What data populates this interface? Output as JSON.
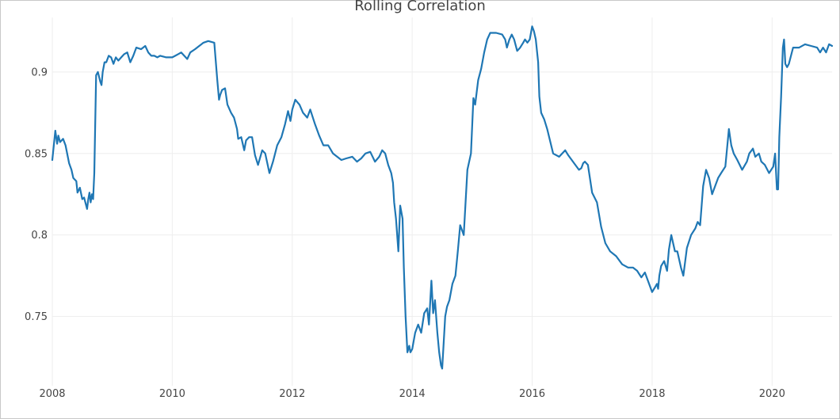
{
  "chart_data": {
    "type": "line",
    "title": "Rolling Correlation",
    "xlabel": "",
    "ylabel": "",
    "xlim": [
      2008.0,
      2021.0
    ],
    "ylim": [
      0.7075,
      0.9335
    ],
    "grid": true,
    "legend": "none",
    "line_color": "#1f77b4",
    "grid_color": "#eeeeee",
    "x_ticks": [
      2008,
      2010,
      2012,
      2014,
      2016,
      2018,
      2020
    ],
    "x_tick_labels": [
      "2008",
      "2010",
      "2012",
      "2014",
      "2016",
      "2018",
      "2020"
    ],
    "y_ticks": [
      0.75,
      0.8,
      0.85,
      0.9
    ],
    "y_tick_labels": [
      "0.75",
      "0.8",
      "0.85",
      "0.9"
    ],
    "series": [
      {
        "x": [
          2008.0,
          2008.05,
          2008.08,
          2008.1,
          2008.13,
          2008.18,
          2008.22,
          2008.28,
          2008.32,
          2008.35,
          2008.4,
          2008.42,
          2008.46,
          2008.5,
          2008.53,
          2008.58,
          2008.6,
          2008.62,
          2008.64,
          2008.66,
          2008.68,
          2008.7,
          2008.73,
          2008.76,
          2008.8,
          2008.82,
          2008.84,
          2008.87,
          2008.9,
          2008.94,
          2008.98,
          2009.02,
          2009.06,
          2009.1,
          2009.15,
          2009.2,
          2009.25,
          2009.3,
          2009.35,
          2009.4,
          2009.48,
          2009.55,
          2009.6,
          2009.65,
          2009.7,
          2009.75,
          2009.8,
          2009.9,
          2010.0,
          2010.05,
          2010.1,
          2010.15,
          2010.2,
          2010.25,
          2010.3,
          2010.38,
          2010.45,
          2010.52,
          2010.6,
          2010.7,
          2010.75,
          2010.78,
          2010.8,
          2010.83,
          2010.88,
          2010.92,
          2010.98,
          2011.03,
          2011.08,
          2011.1,
          2011.15,
          2011.2,
          2011.23,
          2011.28,
          2011.33,
          2011.38,
          2011.43,
          2011.5,
          2011.55,
          2011.62,
          2011.68,
          2011.75,
          2011.82,
          2011.88,
          2011.93,
          2011.97,
          2012.0,
          2012.05,
          2012.12,
          2012.18,
          2012.25,
          2012.3,
          2012.38,
          2012.45,
          2012.52,
          2012.6,
          2012.68,
          2012.75,
          2012.82,
          2012.9,
          2013.0,
          2013.08,
          2013.15,
          2013.22,
          2013.3,
          2013.38,
          2013.45,
          2013.5,
          2013.55,
          2013.6,
          2013.65,
          2013.68,
          2013.7,
          2013.73,
          2013.77,
          2013.8,
          2013.84,
          2013.86,
          2013.89,
          2013.92,
          2013.95,
          2013.97,
          2014.0,
          2014.05,
          2014.1,
          2014.15,
          2014.2,
          2014.25,
          2014.28,
          2014.32,
          2014.35,
          2014.38,
          2014.42,
          2014.45,
          2014.48,
          2014.5,
          2014.55,
          2014.58,
          2014.62,
          2014.67,
          2014.72,
          2014.76,
          2014.8,
          2014.86,
          2014.92,
          2014.98,
          2015.02,
          2015.05,
          2015.1,
          2015.15,
          2015.2,
          2015.25,
          2015.3,
          2015.4,
          2015.5,
          2015.55,
          2015.58,
          2015.62,
          2015.66,
          2015.7,
          2015.75,
          2015.8,
          2015.85,
          2015.88,
          2015.92,
          2015.96,
          2016.0,
          2016.03,
          2016.06,
          2016.1,
          2016.12,
          2016.15,
          2016.2,
          2016.25,
          2016.35,
          2016.45,
          2016.55,
          2016.6,
          2016.7,
          2016.78,
          2016.82,
          2016.85,
          2016.88,
          2016.93,
          2017.0,
          2017.08,
          2017.15,
          2017.22,
          2017.3,
          2017.4,
          2017.5,
          2017.6,
          2017.68,
          2017.75,
          2017.82,
          2017.88,
          2017.95,
          2018.0,
          2018.05,
          2018.08,
          2018.1,
          2018.12,
          2018.15,
          2018.2,
          2018.25,
          2018.28,
          2018.32,
          2018.38,
          2018.42,
          2018.48,
          2018.52,
          2018.58,
          2018.65,
          2018.72,
          2018.76,
          2018.8,
          2018.85,
          2018.9,
          2018.95,
          2019.0,
          2019.05,
          2019.1,
          2019.15,
          2019.22,
          2019.28,
          2019.32,
          2019.36,
          2019.42,
          2019.5,
          2019.58,
          2019.62,
          2019.68,
          2019.72,
          2019.78,
          2019.82,
          2019.88,
          2019.95,
          2020.02,
          2020.05,
          2020.08,
          2020.1,
          2020.12,
          2020.15,
          2020.18,
          2020.2,
          2020.22,
          2020.25,
          2020.28,
          2020.35,
          2020.45,
          2020.55,
          2020.65,
          2020.75,
          2020.8,
          2020.85,
          2020.9,
          2020.95,
          2021.0
        ],
        "y": [
          0.846,
          0.864,
          0.856,
          0.861,
          0.857,
          0.859,
          0.855,
          0.844,
          0.84,
          0.835,
          0.833,
          0.826,
          0.829,
          0.822,
          0.823,
          0.816,
          0.822,
          0.826,
          0.82,
          0.825,
          0.822,
          0.838,
          0.898,
          0.9,
          0.894,
          0.892,
          0.9,
          0.906,
          0.906,
          0.91,
          0.909,
          0.905,
          0.909,
          0.907,
          0.909,
          0.911,
          0.912,
          0.906,
          0.91,
          0.915,
          0.914,
          0.916,
          0.912,
          0.91,
          0.91,
          0.909,
          0.91,
          0.909,
          0.909,
          0.91,
          0.911,
          0.912,
          0.91,
          0.908,
          0.912,
          0.914,
          0.916,
          0.918,
          0.919,
          0.918,
          0.895,
          0.883,
          0.886,
          0.889,
          0.89,
          0.88,
          0.875,
          0.872,
          0.865,
          0.859,
          0.86,
          0.852,
          0.858,
          0.86,
          0.86,
          0.849,
          0.843,
          0.852,
          0.85,
          0.838,
          0.845,
          0.855,
          0.86,
          0.868,
          0.876,
          0.87,
          0.877,
          0.883,
          0.88,
          0.875,
          0.872,
          0.877,
          0.868,
          0.861,
          0.855,
          0.855,
          0.85,
          0.848,
          0.846,
          0.847,
          0.848,
          0.845,
          0.847,
          0.85,
          0.851,
          0.845,
          0.848,
          0.852,
          0.85,
          0.843,
          0.838,
          0.832,
          0.82,
          0.81,
          0.79,
          0.818,
          0.81,
          0.78,
          0.75,
          0.728,
          0.732,
          0.728,
          0.73,
          0.74,
          0.745,
          0.74,
          0.752,
          0.755,
          0.745,
          0.772,
          0.752,
          0.76,
          0.74,
          0.728,
          0.72,
          0.718,
          0.75,
          0.756,
          0.76,
          0.77,
          0.775,
          0.79,
          0.806,
          0.8,
          0.84,
          0.85,
          0.884,
          0.88,
          0.895,
          0.902,
          0.912,
          0.92,
          0.924,
          0.924,
          0.923,
          0.92,
          0.915,
          0.92,
          0.923,
          0.92,
          0.913,
          0.915,
          0.918,
          0.92,
          0.918,
          0.92,
          0.928,
          0.925,
          0.92,
          0.906,
          0.885,
          0.875,
          0.871,
          0.865,
          0.85,
          0.848,
          0.852,
          0.849,
          0.844,
          0.84,
          0.841,
          0.844,
          0.845,
          0.843,
          0.826,
          0.82,
          0.805,
          0.795,
          0.79,
          0.787,
          0.782,
          0.78,
          0.78,
          0.778,
          0.774,
          0.777,
          0.77,
          0.765,
          0.768,
          0.77,
          0.767,
          0.775,
          0.781,
          0.784,
          0.778,
          0.791,
          0.8,
          0.79,
          0.79,
          0.78,
          0.775,
          0.792,
          0.8,
          0.804,
          0.808,
          0.806,
          0.83,
          0.84,
          0.835,
          0.825,
          0.83,
          0.835,
          0.838,
          0.842,
          0.865,
          0.855,
          0.85,
          0.846,
          0.84,
          0.845,
          0.85,
          0.853,
          0.848,
          0.85,
          0.845,
          0.843,
          0.838,
          0.842,
          0.85,
          0.828,
          0.828,
          0.86,
          0.885,
          0.915,
          0.92,
          0.905,
          0.903,
          0.905,
          0.915,
          0.915,
          0.917,
          0.916,
          0.915,
          0.912,
          0.915,
          0.912,
          0.917,
          0.916
        ]
      }
    ]
  }
}
